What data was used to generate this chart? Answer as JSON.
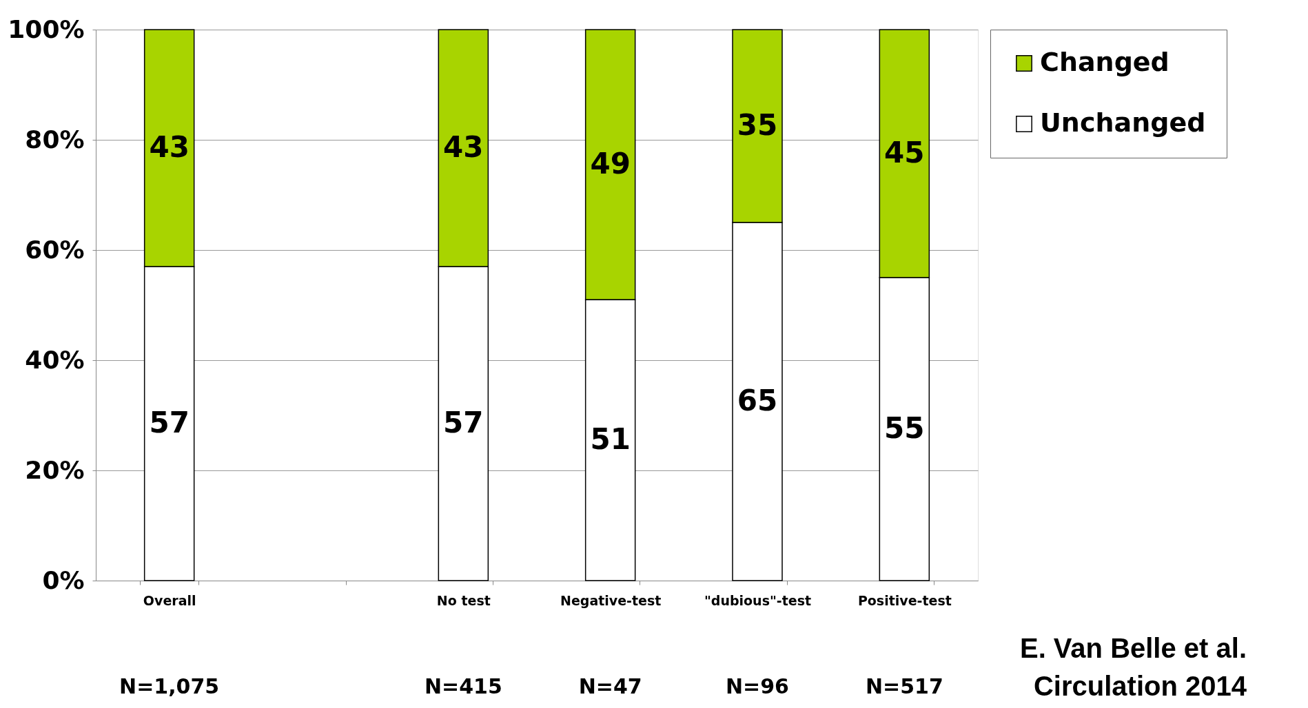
{
  "chart_data": {
    "type": "bar",
    "stacked": true,
    "categories": [
      "Overall",
      null,
      "No test",
      "Negative-test",
      "\"dubious\"-test",
      "Positive-test"
    ],
    "series": [
      {
        "name": "Unchanged",
        "color": "#ffffff",
        "values": [
          57,
          null,
          57,
          51,
          65,
          55
        ]
      },
      {
        "name": "Changed",
        "color": "#a8d400",
        "values": [
          43,
          null,
          43,
          49,
          35,
          45
        ]
      }
    ],
    "ylim": [
      0,
      100
    ],
    "yticks": [
      {
        "value": 0,
        "label": "0%"
      },
      {
        "value": 20,
        "label": "20%"
      },
      {
        "value": 40,
        "label": "40%"
      },
      {
        "value": 60,
        "label": "60%"
      },
      {
        "value": 80,
        "label": "80%"
      },
      {
        "value": 100,
        "label": "100%"
      }
    ],
    "grid": "y",
    "legend": "right",
    "data_labels": true,
    "annotations": [
      "N=1,075",
      "N=415",
      "N=47",
      "N=96",
      "N=517",
      "E. Van Belle et al.",
      "Circulation 2014"
    ]
  }
}
